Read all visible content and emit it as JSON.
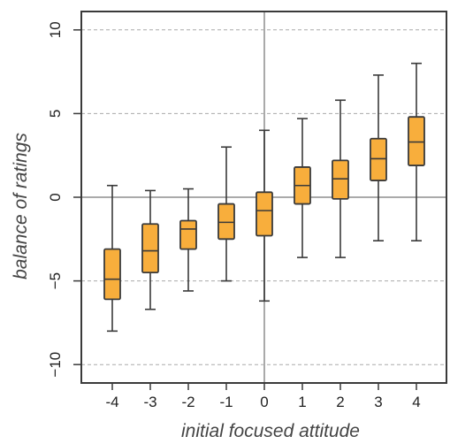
{
  "chart_data": {
    "type": "box",
    "title": "",
    "xlabel": "initial focused attitude",
    "ylabel": "balance of ratings",
    "categories": [
      "-4",
      "-3",
      "-2",
      "-1",
      "0",
      "1",
      "2",
      "3",
      "4"
    ],
    "ylim": [
      -11.1,
      11.1
    ],
    "yticks": [
      -10,
      -5,
      0,
      5,
      10
    ],
    "ytick_labels": [
      "−10",
      "−5",
      "0",
      "5",
      "10"
    ],
    "grid": "horizontal dashed",
    "reference_lines": {
      "x_at_category": "0",
      "y": 0
    },
    "boxes": [
      {
        "category": "-4",
        "min": -8.0,
        "q1": -6.1,
        "median": -4.9,
        "q3": -3.1,
        "max": 0.7
      },
      {
        "category": "-3",
        "min": -6.7,
        "q1": -4.5,
        "median": -3.2,
        "q3": -1.6,
        "max": 0.4
      },
      {
        "category": "-2",
        "min": -5.6,
        "q1": -3.1,
        "median": -1.9,
        "q3": -1.4,
        "max": 0.5
      },
      {
        "category": "-1",
        "min": -5.0,
        "q1": -2.5,
        "median": -1.5,
        "q3": -0.4,
        "max": 3.0
      },
      {
        "category": "0",
        "min": -6.2,
        "q1": -2.3,
        "median": -0.8,
        "q3": 0.3,
        "max": 4.0
      },
      {
        "category": "1",
        "min": -3.6,
        "q1": -0.4,
        "median": 0.7,
        "q3": 1.8,
        "max": 4.7
      },
      {
        "category": "2",
        "min": -3.6,
        "q1": -0.1,
        "median": 1.1,
        "q3": 2.2,
        "max": 5.8
      },
      {
        "category": "3",
        "min": -2.6,
        "q1": 1.0,
        "median": 2.3,
        "q3": 3.5,
        "max": 7.3
      },
      {
        "category": "4",
        "min": -2.6,
        "q1": 1.9,
        "median": 3.3,
        "q3": 4.8,
        "max": 8.0
      }
    ]
  },
  "colors": {
    "box_fill": "#F8AE3C",
    "box_stroke": "#3a3a3a",
    "whisker": "#3a3a3a",
    "grid": "#aaaaaa",
    "reference_line": "#aaaaaa",
    "frame": "#3a3a3a"
  }
}
